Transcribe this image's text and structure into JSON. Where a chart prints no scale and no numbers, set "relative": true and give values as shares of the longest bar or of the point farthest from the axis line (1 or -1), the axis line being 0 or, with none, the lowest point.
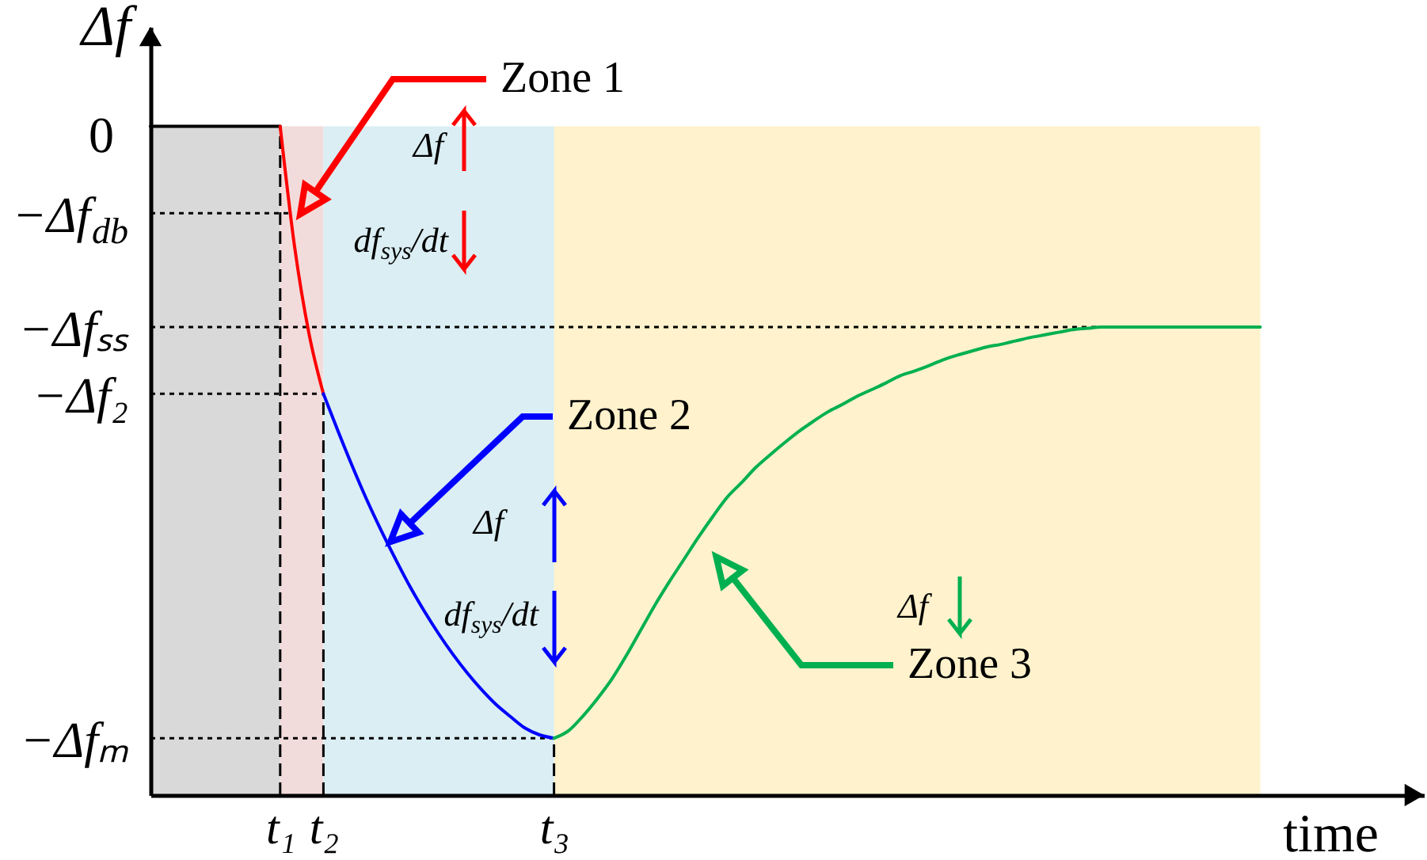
{
  "chart_data": {
    "type": "line",
    "relative": true,
    "xlabel": "time",
    "ylabel": "Δf",
    "categories": [
      null,
      null,
      null,
      null,
      null,
      null,
      null,
      null,
      null,
      "t₁",
      null,
      null,
      "t₂",
      null,
      null,
      null,
      null,
      null,
      null,
      null,
      null,
      null,
      null,
      null,
      null,
      null,
      null,
      null,
      "t₃",
      null,
      null,
      null,
      null,
      null,
      null,
      null,
      null,
      null,
      null,
      null,
      null,
      null,
      null,
      null,
      null,
      null,
      null,
      null,
      null,
      null,
      null,
      null,
      null,
      null,
      null,
      null,
      null,
      null,
      null,
      null,
      null,
      null,
      null,
      null,
      null,
      null,
      null,
      null,
      null,
      null,
      null,
      null,
      null,
      null,
      null,
      null,
      null,
      null
    ],
    "series": [
      {
        "type": "area",
        "color": "#d9d9d9",
        "values": [
          1,
          1,
          1,
          1,
          1,
          1,
          1,
          1,
          1,
          1,
          null,
          null,
          null,
          null,
          null,
          null,
          null,
          null,
          null,
          null,
          null,
          null,
          null,
          null,
          null,
          null,
          null,
          null,
          null,
          null,
          null,
          null,
          null,
          null,
          null,
          null,
          null,
          null,
          null,
          null,
          null,
          null,
          null,
          null,
          null,
          null,
          null,
          null,
          null,
          null,
          null,
          null,
          null,
          null,
          null,
          null,
          null,
          null,
          null,
          null,
          null,
          null,
          null,
          null,
          null,
          null,
          null,
          null,
          null,
          null,
          null,
          null,
          null,
          null,
          null,
          null,
          null,
          null
        ]
      },
      {
        "type": "area",
        "color": "#fff2cc",
        "values": [
          null,
          null,
          null,
          null,
          null,
          null,
          null,
          null,
          null,
          null,
          null,
          null,
          null,
          null,
          null,
          null,
          null,
          null,
          null,
          null,
          null,
          null,
          null,
          null,
          null,
          null,
          null,
          null,
          1,
          1,
          1,
          1,
          1,
          1,
          1,
          1,
          1,
          1,
          1,
          1,
          1,
          1,
          1,
          1,
          1,
          1,
          1,
          1,
          1,
          1,
          1,
          1,
          1,
          1,
          1,
          1,
          1,
          1,
          1,
          1,
          1,
          1,
          1,
          1,
          1,
          1,
          1,
          1,
          1,
          1,
          1,
          1,
          1,
          1,
          1,
          1,
          1,
          1
        ]
      },
      {
        "color": "#000000",
        "values": [
          1,
          1,
          1,
          1,
          1,
          1,
          1,
          1,
          1,
          1,
          null,
          null,
          null,
          null,
          null,
          null,
          null,
          null,
          null,
          null,
          null,
          null,
          null,
          null,
          null,
          null,
          null,
          null,
          null,
          null,
          null,
          null,
          null,
          null,
          null,
          null,
          null,
          null,
          null,
          null,
          null,
          null,
          null,
          null,
          null,
          null,
          null,
          null,
          null,
          null,
          null,
          null,
          null,
          null,
          null,
          null,
          null,
          null,
          null,
          null,
          null,
          null,
          null,
          null,
          null,
          null,
          null,
          null,
          null,
          null,
          null,
          null,
          null,
          null,
          null,
          null,
          null,
          null
        ]
      },
      {
        "color": "#ff0000",
        "values": [
          null,
          null,
          null,
          null,
          null,
          null,
          null,
          null,
          null,
          1,
          0.82,
          0.69,
          0.6,
          null,
          null,
          null,
          null,
          null,
          null,
          null,
          null,
          null,
          null,
          null,
          null,
          null,
          null,
          null,
          null,
          null,
          null,
          null,
          null,
          null,
          null,
          null,
          null,
          null,
          null,
          null,
          null,
          null,
          null,
          null,
          null,
          null,
          null,
          null,
          null,
          null,
          null,
          null,
          null,
          null,
          null,
          null,
          null,
          null,
          null,
          null,
          null,
          null,
          null,
          null,
          null,
          null,
          null,
          null,
          null,
          null,
          null,
          null,
          null,
          null,
          null,
          null,
          null,
          null
        ]
      },
      {
        "color": "#0000ff",
        "values": [
          null,
          null,
          null,
          null,
          null,
          null,
          null,
          null,
          null,
          null,
          null,
          null,
          0.6,
          0.545,
          0.492,
          0.442,
          0.396,
          0.353,
          0.312,
          0.275,
          0.241,
          0.21,
          0.182,
          0.157,
          0.135,
          0.117,
          0.1,
          0.09,
          0.085,
          null,
          null,
          null,
          null,
          null,
          null,
          null,
          null,
          null,
          null,
          null,
          null,
          null,
          null,
          null,
          null,
          null,
          null,
          null,
          null,
          null,
          null,
          null,
          null,
          null,
          null,
          null,
          null,
          null,
          null,
          null,
          null,
          null,
          null,
          null,
          null,
          null,
          null,
          null,
          null,
          null,
          null,
          null,
          null,
          null,
          null,
          null,
          null,
          null
        ]
      },
      {
        "color": "#00b050",
        "values": [
          null,
          null,
          null,
          null,
          null,
          null,
          null,
          null,
          null,
          null,
          null,
          null,
          null,
          null,
          null,
          null,
          null,
          null,
          null,
          null,
          null,
          null,
          null,
          null,
          null,
          null,
          null,
          null,
          0.085,
          0.096,
          0.118,
          0.144,
          0.173,
          0.208,
          0.246,
          0.284,
          0.319,
          0.352,
          0.385,
          0.416,
          0.445,
          0.467,
          0.49,
          0.509,
          0.527,
          0.544,
          0.559,
          0.573,
          0.584,
          0.596,
          0.606,
          0.616,
          0.627,
          0.634,
          0.642,
          0.651,
          0.658,
          0.664,
          0.67,
          0.674,
          0.679,
          0.684,
          0.688,
          0.692,
          0.696,
          0.698,
          0.7,
          0.7,
          0.7,
          0.7,
          0.7,
          0.7,
          0.7,
          0.7,
          0.7,
          0.7,
          0.7,
          0.7
        ]
      }
    ],
    "ref_lines": [
      {
        "axis": "y",
        "value": 0.87,
        "label": "−Δf$_{db}$",
        "line_style": "dotted",
        "color": "#000000"
      },
      {
        "axis": "y",
        "value": 0.7,
        "label": "−Δfₛₛ",
        "line_style": "dotted",
        "color": "#000000"
      },
      {
        "axis": "y",
        "value": 0.6,
        "label": "−Δf₂",
        "line_style": "dotted",
        "color": "#000000"
      },
      {
        "axis": "y",
        "value": 0.085,
        "label": "−Δfₘ",
        "line_style": "dotted",
        "color": "#000000"
      },
      {
        "axis": "x",
        "value": "t₁",
        "line_style": "dashed",
        "color": "#000000"
      },
      {
        "axis": "x",
        "value": "t₂",
        "line_style": "dashed",
        "color": "#000000"
      },
      {
        "axis": "x",
        "value": "t₃",
        "line_style": "dashed",
        "color": "#000000"
      }
    ],
    "bands": [
      {
        "axis": "x",
        "from": "t₁",
        "to": "t₂",
        "label": "Zone 1",
        "color": "#f2dcdb"
      },
      {
        "axis": "x",
        "from": "t₂",
        "to": "t₃",
        "label": "Zone 2",
        "color": "#daeef3"
      }
    ],
    "annotations": [
      "0",
      "Δf",
      "df$_{sys}$/dt",
      "Δf",
      "df$_{sys}$/dt",
      "Δf",
      "Zone 3"
    ]
  }
}
